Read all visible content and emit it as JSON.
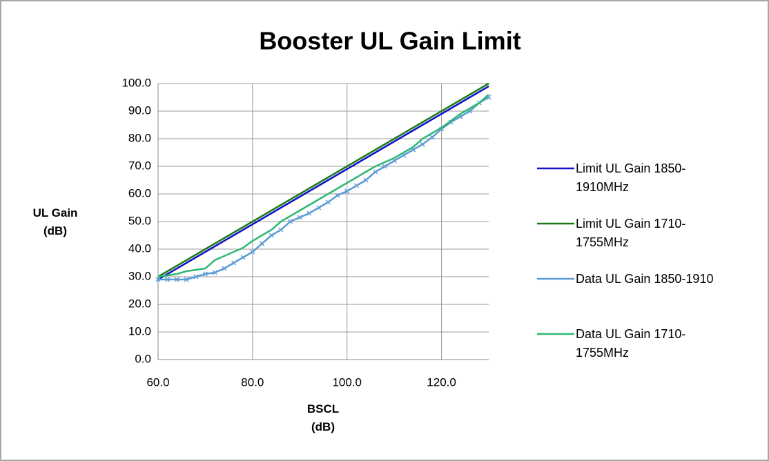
{
  "chart_data": {
    "type": "line",
    "title": "Booster UL Gain Limit",
    "x_label": "BSCL (dB)",
    "y_label": "UL Gain (dB)",
    "x": [
      60,
      62,
      64,
      66,
      68,
      70,
      72,
      74,
      76,
      78,
      80,
      82,
      84,
      86,
      88,
      90,
      92,
      94,
      96,
      98,
      100,
      102,
      104,
      106,
      108,
      110,
      112,
      114,
      116,
      118,
      120,
      122,
      124,
      126,
      128,
      130
    ],
    "series": [
      {
        "name": "Limit UL Gain 1850-1910MHz",
        "color": "#1010c8",
        "values": [
          29,
          31,
          33,
          35,
          37,
          39,
          41,
          43,
          45,
          47,
          49,
          51,
          53,
          55,
          57,
          59,
          61,
          63,
          65,
          67,
          69,
          71,
          73,
          75,
          77,
          79,
          81,
          83,
          85,
          87,
          89,
          91,
          93,
          95,
          97,
          99
        ]
      },
      {
        "name": "Limit UL Gain 1710-1755MHz",
        "color": "#1a7a1a",
        "values": [
          30,
          32,
          34,
          36,
          38,
          40,
          42,
          44,
          46,
          48,
          50,
          52,
          54,
          56,
          58,
          60,
          62,
          64,
          66,
          68,
          70,
          72,
          74,
          76,
          78,
          80,
          82,
          84,
          86,
          88,
          90,
          92,
          94,
          96,
          98,
          100
        ]
      },
      {
        "name": "Data UL Gain 1850-1910",
        "color": "#5b9bd5",
        "marker": "x",
        "values": [
          29,
          29,
          29,
          29,
          30,
          31,
          31.5,
          33,
          35,
          37,
          39,
          42,
          45,
          47,
          50,
          51.5,
          53,
          55,
          57,
          59.5,
          61,
          63,
          65,
          68,
          70,
          72,
          74,
          76,
          78,
          80.5,
          83.5,
          86,
          88,
          90,
          93,
          95
        ]
      },
      {
        "name": "Data UL Gain 1710-1755MHz",
        "color": "#2eb872",
        "values": [
          30,
          30.5,
          31,
          32,
          32.5,
          33,
          36,
          37.5,
          39,
          40.5,
          43,
          45,
          47,
          50,
          52,
          54,
          56,
          58,
          60,
          62,
          64,
          66,
          68,
          70,
          71.5,
          73,
          75,
          77,
          80,
          82,
          84,
          86.5,
          89,
          91,
          93,
          96
        ]
      }
    ],
    "xlim": [
      60,
      130
    ],
    "xticks": [
      {
        "value": 60,
        "label": "60.0"
      },
      {
        "value": 80,
        "label": "80.0"
      },
      {
        "value": 100,
        "label": "100.0"
      },
      {
        "value": 120,
        "label": "120.0"
      }
    ],
    "ylim": [
      0,
      100
    ],
    "yticks": [
      {
        "value": 0,
        "label": "0.0"
      },
      {
        "value": 10,
        "label": "10.0"
      },
      {
        "value": 20,
        "label": "20.0"
      },
      {
        "value": 30,
        "label": "30.0"
      },
      {
        "value": 40,
        "label": "40.0"
      },
      {
        "value": 50,
        "label": "50.0"
      },
      {
        "value": 60,
        "label": "60.0"
      },
      {
        "value": 70,
        "label": "70.0"
      },
      {
        "value": 80,
        "label": "80.0"
      },
      {
        "value": 90,
        "label": "90.0"
      },
      {
        "value": 100,
        "label": "100.0"
      }
    ],
    "grid": true,
    "legend": "right"
  }
}
